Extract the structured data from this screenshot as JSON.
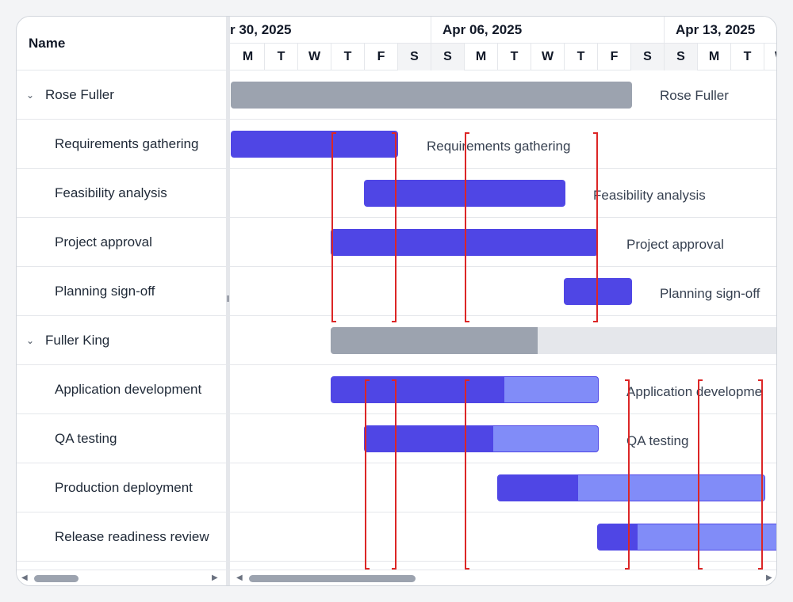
{
  "grid": {
    "name_header": "Name",
    "rows": [
      {
        "label": "Rose Fuller",
        "type": "parent"
      },
      {
        "label": "Requirements gathering",
        "type": "child"
      },
      {
        "label": "Feasibility analysis",
        "type": "child"
      },
      {
        "label": "Project approval",
        "type": "child"
      },
      {
        "label": "Planning sign-off",
        "type": "child"
      },
      {
        "label": "Fuller King",
        "type": "parent"
      },
      {
        "label": "Application development",
        "type": "child"
      },
      {
        "label": "QA testing",
        "type": "child"
      },
      {
        "label": "Production deployment",
        "type": "child"
      },
      {
        "label": "Release readiness review",
        "type": "child"
      }
    ]
  },
  "timeline": {
    "weeks": [
      "r 30, 2025",
      "Apr 06, 2025",
      "Apr 13, 2025"
    ],
    "days": [
      "M",
      "T",
      "W",
      "T",
      "F",
      "S",
      "S",
      "M",
      "T",
      "W",
      "T",
      "F",
      "S",
      "S",
      "M",
      "T",
      "W"
    ],
    "bar_labels": [
      "Rose Fuller",
      "Requirements gathering",
      "Feasibility analysis",
      "Project approval",
      "Planning sign-off",
      "",
      "Application developme",
      "QA testing",
      "",
      ""
    ]
  },
  "colors": {
    "summary_progress": "#9ca3af",
    "summary_track": "#e5e7eb",
    "task_progress": "#4f46e5",
    "task_track": "#818cf8",
    "constraint_marker": "#dc2626"
  }
}
